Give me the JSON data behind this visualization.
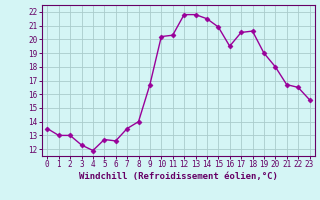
{
  "x": [
    0,
    1,
    2,
    3,
    4,
    5,
    6,
    7,
    8,
    9,
    10,
    11,
    12,
    13,
    14,
    15,
    16,
    17,
    18,
    19,
    20,
    21,
    22,
    23
  ],
  "y": [
    13.5,
    13.0,
    13.0,
    12.3,
    11.9,
    12.7,
    12.6,
    13.5,
    14.0,
    16.7,
    20.2,
    20.3,
    21.8,
    21.8,
    21.5,
    20.9,
    19.5,
    20.5,
    20.6,
    19.0,
    18.0,
    16.7,
    16.5,
    15.6
  ],
  "line_color": "#990099",
  "marker": "D",
  "marker_size": 2.5,
  "bg_color": "#d4f5f5",
  "grid_color": "#aacccc",
  "xlabel": "Windchill (Refroidissement éolien,°C)",
  "xlim": [
    -0.5,
    23.5
  ],
  "ylim": [
    11.5,
    22.5
  ],
  "yticks": [
    12,
    13,
    14,
    15,
    16,
    17,
    18,
    19,
    20,
    21,
    22
  ],
  "xticks": [
    0,
    1,
    2,
    3,
    4,
    5,
    6,
    7,
    8,
    9,
    10,
    11,
    12,
    13,
    14,
    15,
    16,
    17,
    18,
    19,
    20,
    21,
    22,
    23
  ],
  "tick_fontsize": 5.5,
  "xlabel_fontsize": 6.5,
  "line_width": 1.0,
  "spine_color": "#660066",
  "tick_color": "#660066"
}
